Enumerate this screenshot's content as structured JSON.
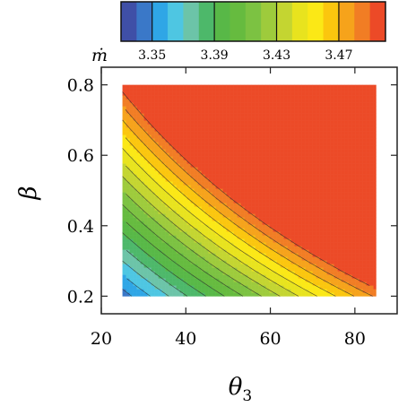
{
  "chart_data": {
    "type": "heatmap",
    "xlabel": "θ",
    "xlabel_sub": "3",
    "ylabel": "β",
    "colorbar_label": "ṁ",
    "x_range": [
      25,
      85
    ],
    "y_range": [
      0.2,
      0.8
    ],
    "xlim": [
      20,
      90
    ],
    "ylim": [
      0.15,
      0.85
    ],
    "x_ticks": [
      20,
      40,
      60,
      80
    ],
    "y_ticks": [
      0.2,
      0.4,
      0.6,
      0.8
    ],
    "x_tick_labels": [
      "20",
      "40",
      "60",
      "80"
    ],
    "y_tick_labels": [
      "0.2",
      "0.4",
      "0.6",
      "0.8"
    ],
    "colorbar_tick_labels": [
      "3.35",
      "3.39",
      "3.43",
      "3.47"
    ],
    "colorbar_tick_values": [
      3.35,
      3.39,
      3.43,
      3.47
    ],
    "colorbar_range": [
      3.33,
      3.5
    ],
    "levels": [
      3.33,
      3.34,
      3.35,
      3.36,
      3.37,
      3.38,
      3.39,
      3.4,
      3.41,
      3.42,
      3.43,
      3.44,
      3.45,
      3.46,
      3.47,
      3.48,
      3.49,
      3.5
    ],
    "colors": [
      "#3f4fa7",
      "#3a78c8",
      "#2fa6e6",
      "#4ec6e2",
      "#6cc4a8",
      "#4db86a",
      "#58b847",
      "#66bb3f",
      "#7cc242",
      "#9ecb3c",
      "#c4d531",
      "#e8e31e",
      "#fbe816",
      "#fbc60e",
      "#f6a31b",
      "#f17d24",
      "#ec4a27"
    ],
    "field_model": "m = 3.25 + 0.0018*theta3 + 0.19*beta + 0.0024*theta3*beta (fit to the drawn contour pattern)",
    "grid": false
  }
}
